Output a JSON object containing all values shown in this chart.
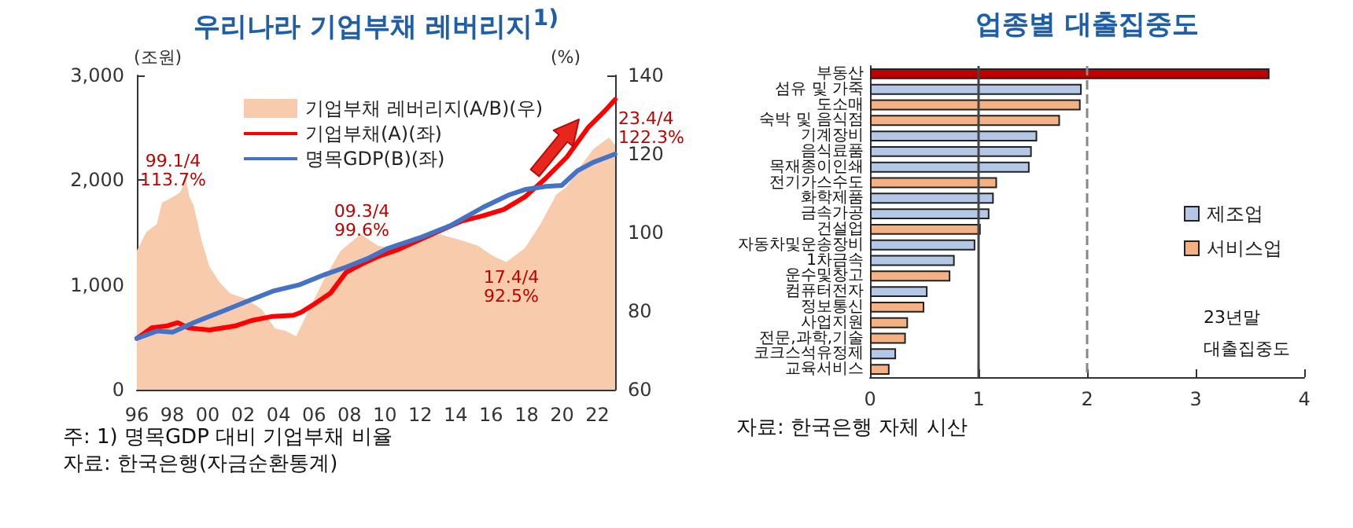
{
  "chart_data": [
    {
      "type": "line",
      "title": "우리나라 기업부채 레버리지$^{1)}$",
      "ylabel": "(조원)",
      "y2label": "(%)",
      "xlim": [
        1996,
        2023
      ],
      "xticks": [
        {
          "value": 1996,
          "label": "96"
        },
        {
          "value": 1998,
          "label": "98"
        },
        {
          "value": 2000,
          "label": "00"
        },
        {
          "value": 2002,
          "label": "02"
        },
        {
          "value": 2004,
          "label": "04"
        },
        {
          "value": 2006,
          "label": "06"
        },
        {
          "value": 2008,
          "label": "08"
        },
        {
          "value": 2010,
          "label": "10"
        },
        {
          "value": 2012,
          "label": "12"
        },
        {
          "value": 2014,
          "label": "14"
        },
        {
          "value": 2016,
          "label": "16"
        },
        {
          "value": 2018,
          "label": "18"
        },
        {
          "value": 2020,
          "label": "20"
        },
        {
          "value": 2022,
          "label": "22"
        }
      ],
      "ylim": [
        0,
        3000
      ],
      "yticks": [
        0,
        {
          "value": 1000,
          "label": "1,000"
        },
        {
          "value": 2000,
          "label": "2,000"
        },
        {
          "value": 3000,
          "label": "3,000"
        }
      ],
      "y2lim": [
        60,
        140
      ],
      "y2ticks": [
        60,
        80,
        100,
        120,
        140
      ],
      "grid": false,
      "legend": "top",
      "marker": "none",
      "series": [
        {
          "name": "기업부채 레버리지(A/B)(우)",
          "type": "area",
          "axis": "y2",
          "color": "#f8cbad",
          "x": [
            1996.0,
            1996.53,
            1997.13,
            1997.42,
            1998.02,
            1998.46,
            1998.76,
            1998.97,
            1999.2,
            1999.65,
            2000.1,
            2000.69,
            2001.28,
            2002.17,
            2003.06,
            2003.8,
            2004.4,
            2004.99,
            2005.73,
            2006.62,
            2007.51,
            2008.64,
            2009.59,
            2010.78,
            2011.96,
            2013.15,
            2014.34,
            2015.23,
            2016.12,
            2016.86,
            2017.9,
            2018.79,
            2019.68,
            2020.27,
            2020.87,
            2021.76,
            2022.65,
            2023.0
          ],
          "values": [
            95.4,
            100.1,
            102.2,
            107.6,
            109,
            110.3,
            113.7,
            109,
            107,
            98,
            91.3,
            87.2,
            84.5,
            83.1,
            80.4,
            75.6,
            75,
            73.6,
            80.4,
            88.6,
            95.4,
            99.6,
            96.7,
            95.4,
            98.8,
            99.5,
            98,
            96.7,
            94,
            92.5,
            96,
            102.2,
            109.7,
            111.7,
            115.8,
            121.2,
            124.2,
            122.3
          ]
        },
        {
          "name": "기업부채(A)(좌)",
          "color": "#ff0000",
          "x": [
            1996.0,
            1996.83,
            1997.72,
            1998.31,
            1998.91,
            2000.1,
            2001.58,
            2002.47,
            2003.66,
            2004.84,
            2005.29,
            2006.03,
            2006.92,
            2007.81,
            2008.7,
            2009.59,
            2010.78,
            2011.96,
            2013.15,
            2014.34,
            2015.53,
            2016.71,
            2017.9,
            2019.09,
            2020.27,
            2021.46,
            2022.35,
            2023.0
          ],
          "values": [
            490,
            590,
            610,
            640,
            590,
            570,
            610,
            660,
            700,
            710,
            740,
            820,
            920,
            1120,
            1200,
            1270,
            1340,
            1430,
            1520,
            1610,
            1660,
            1720,
            1840,
            2020,
            2220,
            2500,
            2650,
            2770
          ]
        },
        {
          "name": "명목GDP(B)(좌)",
          "color": "#4472c4",
          "x": [
            1996.0,
            1997.13,
            1998.02,
            1999.2,
            2000.99,
            2002.17,
            2003.66,
            2005.14,
            2006.62,
            2007.81,
            2009.0,
            2010.18,
            2011.96,
            2013.74,
            2015.53,
            2017.01,
            2017.9,
            2019.09,
            2019.98,
            2020.87,
            2021.76,
            2023.0
          ],
          "values": [
            490,
            560,
            550,
            640,
            760,
            840,
            940,
            1000,
            1100,
            1170,
            1250,
            1350,
            1450,
            1570,
            1740,
            1860,
            1910,
            1940,
            1950,
            2090,
            2170,
            2250
          ]
        }
      ],
      "annotations": [
        "99.1/4\n113.7%",
        "09.3/4\n99.6%",
        "17.4/4\n92.5%",
        "23.4/4\n122.3%",
        "주: 1) 명목GDP 대비 기업부채 비율",
        "자료: 한국은행(자금순환통계)"
      ]
    },
    {
      "type": "bar",
      "orientation": "horizontal",
      "stacked": true,
      "title": "업종별 대출집중도",
      "categories": [
        "부동산",
        "섬유 및 가죽",
        "도소매",
        "숙박 및 음식점",
        "기계장비",
        "음식료품",
        "목재종이인쇄",
        "전기가스수도",
        "화학제품",
        "금속가공",
        "건설업",
        "자동차및운송장비",
        "1차금속",
        "운수및창고",
        "컴퓨터전자",
        "정보통신",
        "사업지원",
        "전문,과학,기술",
        "코크스석유정제",
        "교육서비스"
      ],
      "xlim": [
        0,
        4
      ],
      "xticks": [
        0,
        1,
        2,
        3,
        4
      ],
      "grid": false,
      "legend": "right",
      "series": [
        {
          "color": "#c00000",
          "values": [
            3.68,
            null,
            null,
            null,
            null,
            null,
            null,
            null,
            null,
            null,
            null,
            null,
            null,
            null,
            null,
            null,
            null,
            null,
            null,
            null
          ]
        },
        {
          "name": "제조업",
          "color": "#b4c7e7",
          "values": [
            null,
            1.95,
            null,
            null,
            1.54,
            1.49,
            1.47,
            null,
            1.14,
            1.1,
            null,
            0.97,
            0.78,
            null,
            0.53,
            null,
            null,
            null,
            0.24,
            null
          ]
        },
        {
          "name": "서비스업",
          "color": "#f4b183",
          "values": [
            null,
            null,
            1.94,
            1.75,
            null,
            null,
            null,
            1.17,
            null,
            null,
            1.02,
            null,
            null,
            0.74,
            null,
            0.5,
            0.35,
            0.33,
            null,
            0.18
          ]
        }
      ],
      "ref_lines": [
        {
          "axis": "x",
          "value": 1,
          "line_style": "solid"
        },
        {
          "axis": "x",
          "value": 2,
          "line_style": "dashed"
        }
      ],
      "annotations": [
        "23년말\n대출집중도",
        "자료: 한국은행 자체 시산"
      ]
    }
  ]
}
